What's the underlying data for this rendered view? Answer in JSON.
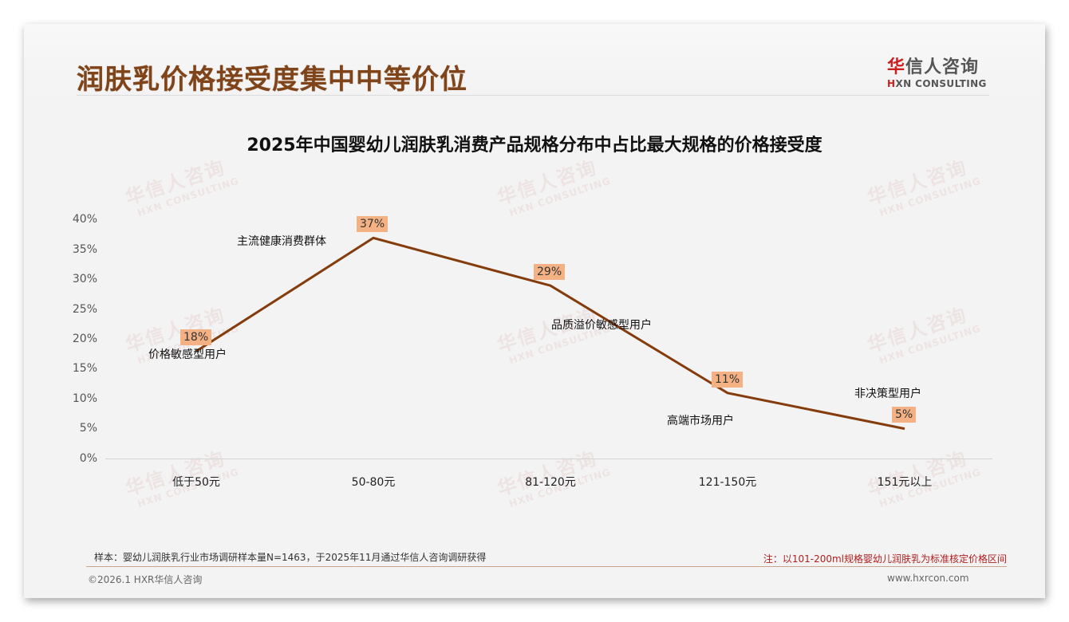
{
  "header": {
    "title": "润肤乳价格接受度集中中等价位",
    "logo_cn_mark": "华",
    "logo_cn_rest": "信人咨询",
    "logo_en_mark": "H",
    "logo_en_rest": "XN CONSULTING"
  },
  "watermark": {
    "cn": "华信人咨询",
    "en": "HXN CONSULTING"
  },
  "chart_data": {
    "type": "line",
    "title": "2025年中国婴幼儿润肤乳消费产品规格分布中占比最大规格的价格接受度",
    "categories": [
      "低于50元",
      "50-80元",
      "81-120元",
      "121-150元",
      "151元以上"
    ],
    "values": [
      18,
      37,
      29,
      11,
      5
    ],
    "value_labels": [
      "18%",
      "37%",
      "29%",
      "11%",
      "5%"
    ],
    "annotations": [
      "价格敏感型用户",
      "主流健康消费群体",
      "品质溢价敏感型用户",
      "高端市场用户",
      "非决策型用户"
    ],
    "yticks": [
      "0%",
      "5%",
      "10%",
      "15%",
      "20%",
      "25%",
      "30%",
      "35%",
      "40%"
    ],
    "ylim": [
      0,
      40
    ],
    "xlabel": "",
    "ylabel": "",
    "grid": false,
    "legend": "none",
    "line_color": "#843c0c",
    "label_bg_color": "#f4b183"
  },
  "footer": {
    "sample": "样本：婴幼儿润肤乳行业市场调研样本量N=1463，于2025年11月通过华信人咨询调研获得",
    "note": "注：以101-200ml规格婴幼儿润肤乳为标准核定价格区间",
    "copyright": "©2026.1 HXR华信人咨询",
    "website": "www.hxrcon.com"
  }
}
